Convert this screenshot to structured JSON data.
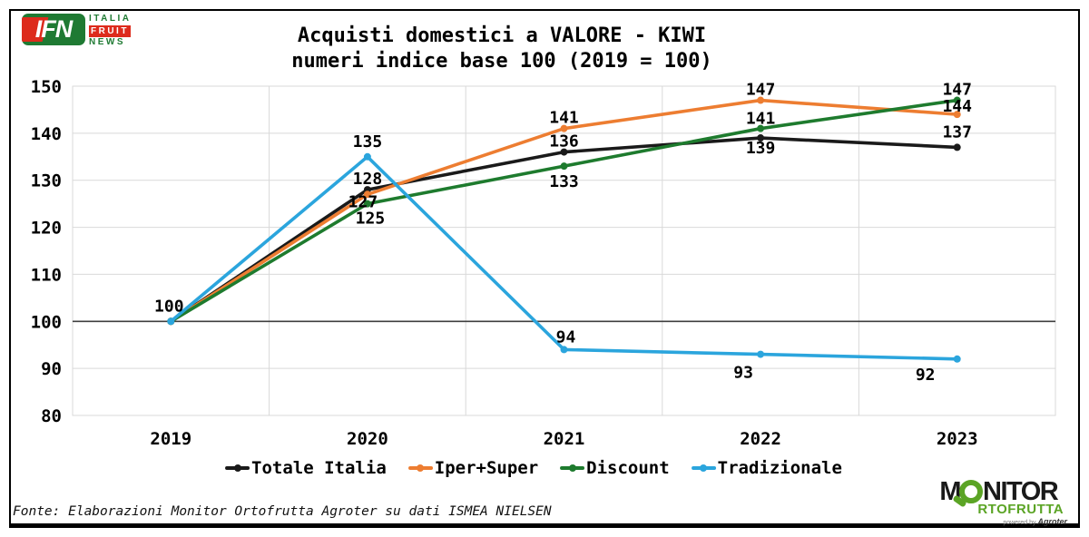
{
  "page": {
    "title_line1": "Acquisti domestici a VALORE - KIWI",
    "title_line2": "numeri indice base 100 (2019 = 100)",
    "footer": "Fonte: Elaborazioni Monitor Ortofrutta Agroter su dati ISMEA NIELSEN"
  },
  "ifn_logo": {
    "acronym": "IFN",
    "word1": "ITALIA",
    "word2": "FRUIT",
    "word3": "NEWS",
    "green": "#1F7A33",
    "red": "#DD2B1C"
  },
  "monitor_logo": {
    "part1": "M",
    "part2": "NITOR",
    "part3": "RTOFRUTTA",
    "powered_prefix": "powered by ",
    "powered_brand": "Agroter",
    "green": "#5BA425",
    "black": "#1A1A1A"
  },
  "chart_data": {
    "type": "line",
    "title": "Acquisti domestici a VALORE - KIWI",
    "subtitle": "numeri indice base 100 (2019 = 100)",
    "categories": [
      "2019",
      "2020",
      "2021",
      "2022",
      "2023"
    ],
    "series": [
      {
        "name": "Totale Italia",
        "color": "#1A1A1A",
        "values": [
          100,
          128,
          136,
          139,
          137
        ]
      },
      {
        "name": "Iper+Super",
        "color": "#ED7D31",
        "values": [
          100,
          127,
          141,
          147,
          144
        ]
      },
      {
        "name": "Discount",
        "color": "#1E7B2E",
        "values": [
          100,
          125,
          133,
          141,
          147
        ]
      },
      {
        "name": "Tradizionale",
        "color": "#2BA5DD",
        "values": [
          100,
          135,
          94,
          93,
          92
        ]
      }
    ],
    "ylim": [
      80,
      150
    ],
    "yticks": [
      80,
      90,
      100,
      110,
      120,
      130,
      140,
      150
    ],
    "baseline_value": 100,
    "grid": true,
    "data_labels": true,
    "legend_position": "bottom"
  },
  "colors": {
    "grid": "#D9D9D9",
    "baseline": "#3F3F3F",
    "border": "#000000"
  }
}
